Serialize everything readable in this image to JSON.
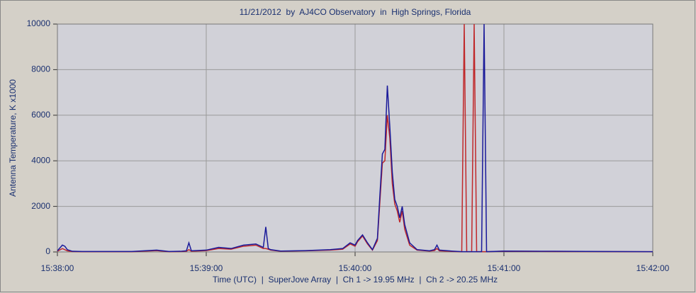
{
  "chart_data": {
    "type": "line",
    "title": "11/21/2012  by  AJ4CO Observatory  in  High Springs, Florida",
    "x_label": "Time (UTC)  |  SuperJove Array  |  Ch 1 -> 19.95 MHz  |  Ch 2 -> 20.25 MHz",
    "y_label": "Antenna Temperature, K x1000",
    "x": [
      "15:38:00",
      "15:38:02",
      "15:38:03",
      "15:38:04",
      "15:38:06",
      "15:38:10",
      "15:38:20",
      "15:38:30",
      "15:38:40",
      "15:38:45",
      "15:38:50",
      "15:38:52",
      "15:38:53",
      "15:38:54",
      "15:39:00",
      "15:39:05",
      "15:39:10",
      "15:39:15",
      "15:39:20",
      "15:39:23",
      "15:39:24",
      "15:39:25",
      "15:39:26",
      "15:39:30",
      "15:39:40",
      "15:39:50",
      "15:39:55",
      "15:39:58",
      "15:40:00",
      "15:40:01",
      "15:40:03",
      "15:40:05",
      "15:40:07",
      "15:40:09",
      "15:40:10",
      "15:40:11",
      "15:40:12",
      "15:40:13",
      "15:40:14",
      "15:40:15",
      "15:40:16",
      "15:40:17",
      "15:40:18",
      "15:40:19",
      "15:40:20",
      "15:40:22",
      "15:40:25",
      "15:40:30",
      "15:40:32",
      "15:40:33",
      "15:40:34",
      "15:40:40",
      "15:40:43",
      "15:40:44",
      "15:40:45",
      "15:40:47",
      "15:40:48",
      "15:40:49",
      "15:40:51",
      "15:40:52",
      "15:40:53",
      "15:41:00",
      "15:41:20",
      "15:41:40",
      "15:42:00"
    ],
    "series": [
      {
        "name": "Ch 1",
        "color": "#c0282a",
        "values": [
          30,
          150,
          100,
          50,
          20,
          10,
          10,
          10,
          60,
          10,
          20,
          30,
          100,
          30,
          60,
          150,
          120,
          250,
          300,
          150,
          150,
          120,
          80,
          30,
          50,
          80,
          120,
          350,
          250,
          450,
          700,
          350,
          80,
          500,
          2200,
          3900,
          4000,
          6000,
          5000,
          3000,
          2100,
          1800,
          1300,
          1800,
          1000,
          300,
          80,
          40,
          60,
          150,
          50,
          20,
          10,
          10000,
          10,
          10,
          10000,
          10,
          10,
          10,
          10,
          30,
          20,
          15,
          10
        ]
      },
      {
        "name": "Ch 2",
        "color": "#1a1a9a",
        "values": [
          50,
          300,
          250,
          100,
          30,
          20,
          20,
          20,
          80,
          20,
          30,
          50,
          400,
          50,
          80,
          200,
          150,
          300,
          350,
          200,
          1100,
          150,
          100,
          40,
          60,
          100,
          150,
          400,
          300,
          500,
          750,
          400,
          100,
          600,
          2500,
          4300,
          4500,
          7300,
          5500,
          3500,
          2300,
          2000,
          1500,
          2000,
          1200,
          400,
          100,
          50,
          100,
          300,
          80,
          30,
          10,
          10,
          10,
          10,
          10,
          10,
          10,
          10000,
          10,
          40,
          30,
          20,
          10
        ]
      }
    ],
    "xlim": [
      "15:38:00",
      "15:42:00"
    ],
    "xticks": [
      "15:38:00",
      "15:39:00",
      "15:40:00",
      "15:41:00",
      "15:42:00"
    ],
    "ylim": [
      0,
      10000
    ],
    "yticks": [
      0,
      2000,
      4000,
      6000,
      8000,
      10000
    ],
    "grid": true
  }
}
